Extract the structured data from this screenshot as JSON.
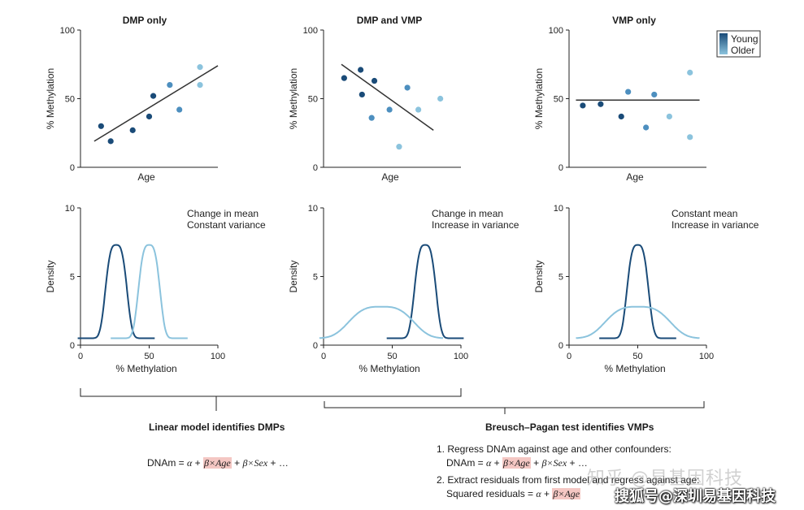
{
  "chart_data": [
    {
      "type": "scatter",
      "title": "DMP only",
      "xlabel": "Age",
      "ylabel": "% Methylation",
      "ylim": [
        0,
        100
      ],
      "yticks": [
        "0",
        "50",
        "100"
      ],
      "x": [
        15,
        22,
        38,
        50,
        53,
        65,
        72,
        87,
        87
      ],
      "y": [
        30,
        19,
        27,
        37,
        52,
        60,
        42,
        73,
        60
      ],
      "groups": [
        "Young",
        "Young",
        "Young",
        "Young",
        "Young",
        "Middle",
        "Middle",
        "Older",
        "Older"
      ],
      "trend": {
        "x": [
          10,
          100
        ],
        "y": [
          19,
          74
        ]
      }
    },
    {
      "type": "scatter",
      "title": "DMP and VMP",
      "xlabel": "Age",
      "ylabel": "% Methylation",
      "ylim": [
        0,
        100
      ],
      "yticks": [
        "0",
        "50",
        "100"
      ],
      "x": [
        15,
        27,
        28,
        35,
        37,
        48,
        55,
        61,
        69,
        85
      ],
      "y": [
        65,
        71,
        53,
        36,
        63,
        42,
        15,
        58,
        42,
        50
      ],
      "groups": [
        "Young",
        "Young",
        "Young",
        "Middle",
        "Young",
        "Middle",
        "Older",
        "Middle",
        "Older",
        "Older"
      ],
      "trend": {
        "x": [
          13,
          80
        ],
        "y": [
          75,
          27
        ]
      }
    },
    {
      "type": "scatter",
      "title": "VMP only",
      "xlabel": "Age",
      "ylabel": "% Methylation",
      "ylim": [
        0,
        100
      ],
      "yticks": [
        "0",
        "50",
        "100"
      ],
      "x": [
        10,
        23,
        38,
        43,
        56,
        62,
        73,
        88,
        88
      ],
      "y": [
        45,
        46,
        37,
        55,
        29,
        53,
        37,
        69,
        22
      ],
      "groups": [
        "Young",
        "Young",
        "Young",
        "Middle",
        "Middle",
        "Middle",
        "Older",
        "Older",
        "Older"
      ],
      "trend": {
        "x": [
          5,
          95
        ],
        "y": [
          49,
          49
        ]
      }
    },
    {
      "type": "line",
      "xlabel": "% Methylation",
      "ylabel": "Density",
      "xlim": [
        0,
        100
      ],
      "ylim": [
        0,
        10
      ],
      "xticks": [
        "0",
        "50",
        "100"
      ],
      "yticks": [
        "0",
        "5",
        "10"
      ],
      "annotation": [
        "Change in mean",
        "Constant variance"
      ],
      "series": [
        {
          "name": "Young",
          "mean": 26,
          "spread": 9,
          "peak": 7.3
        },
        {
          "name": "Older",
          "mean": 50,
          "spread": 9,
          "peak": 7.3
        }
      ]
    },
    {
      "type": "line",
      "xlabel": "% Methylation",
      "ylabel": "Density",
      "xlim": [
        0,
        100
      ],
      "ylim": [
        0,
        10
      ],
      "xticks": [
        "0",
        "50",
        "100"
      ],
      "yticks": [
        "0",
        "5",
        "10"
      ],
      "annotation": [
        "Change in mean",
        "Increase in variance"
      ],
      "series": [
        {
          "name": "Young",
          "mean": 74,
          "spread": 9,
          "peak": 7.3
        },
        {
          "name": "Older",
          "mean": 42,
          "spread": 27,
          "peak": 2.8
        }
      ]
    },
    {
      "type": "line",
      "xlabel": "% Methylation",
      "ylabel": "Density",
      "xlim": [
        0,
        100
      ],
      "ylim": [
        0,
        10
      ],
      "xticks": [
        "0",
        "50",
        "100"
      ],
      "yticks": [
        "0",
        "5",
        "10"
      ],
      "annotation": [
        "Constant mean",
        "Increase in variance"
      ],
      "series": [
        {
          "name": "Young",
          "mean": 50,
          "spread": 9,
          "peak": 7.3
        },
        {
          "name": "Older",
          "mean": 50,
          "spread": 27,
          "peak": 2.8
        }
      ]
    }
  ],
  "legend": {
    "items": [
      "Young",
      "Older"
    ]
  },
  "colors": {
    "young": "#1a4b78",
    "middle": "#4d8fbf",
    "older": "#8bc3dd",
    "axis": "#222222",
    "highlight": "#f4c7c3"
  },
  "captions": {
    "linear_model": "Linear model identifies DMPs",
    "bp_test": "Breusch–Pagan test identifies VMPs"
  },
  "formulas": {
    "dnam_lead": "DNAm = ",
    "alpha": "α",
    "plus": " + ",
    "beta_age": "β×Age",
    "beta_sex": "β×Sex",
    "tail": " + …",
    "step1": "1. Regress DNAm against age and other confounders:",
    "dnam_indent": "DNAm = ",
    "step2": "2. Extract residuals from first model and regress against age:",
    "resid_lead": "Squared residuals = "
  },
  "watermarks": {
    "top": "知乎 @易基因科技",
    "bottom": "搜狐号@深圳易基因科技"
  }
}
